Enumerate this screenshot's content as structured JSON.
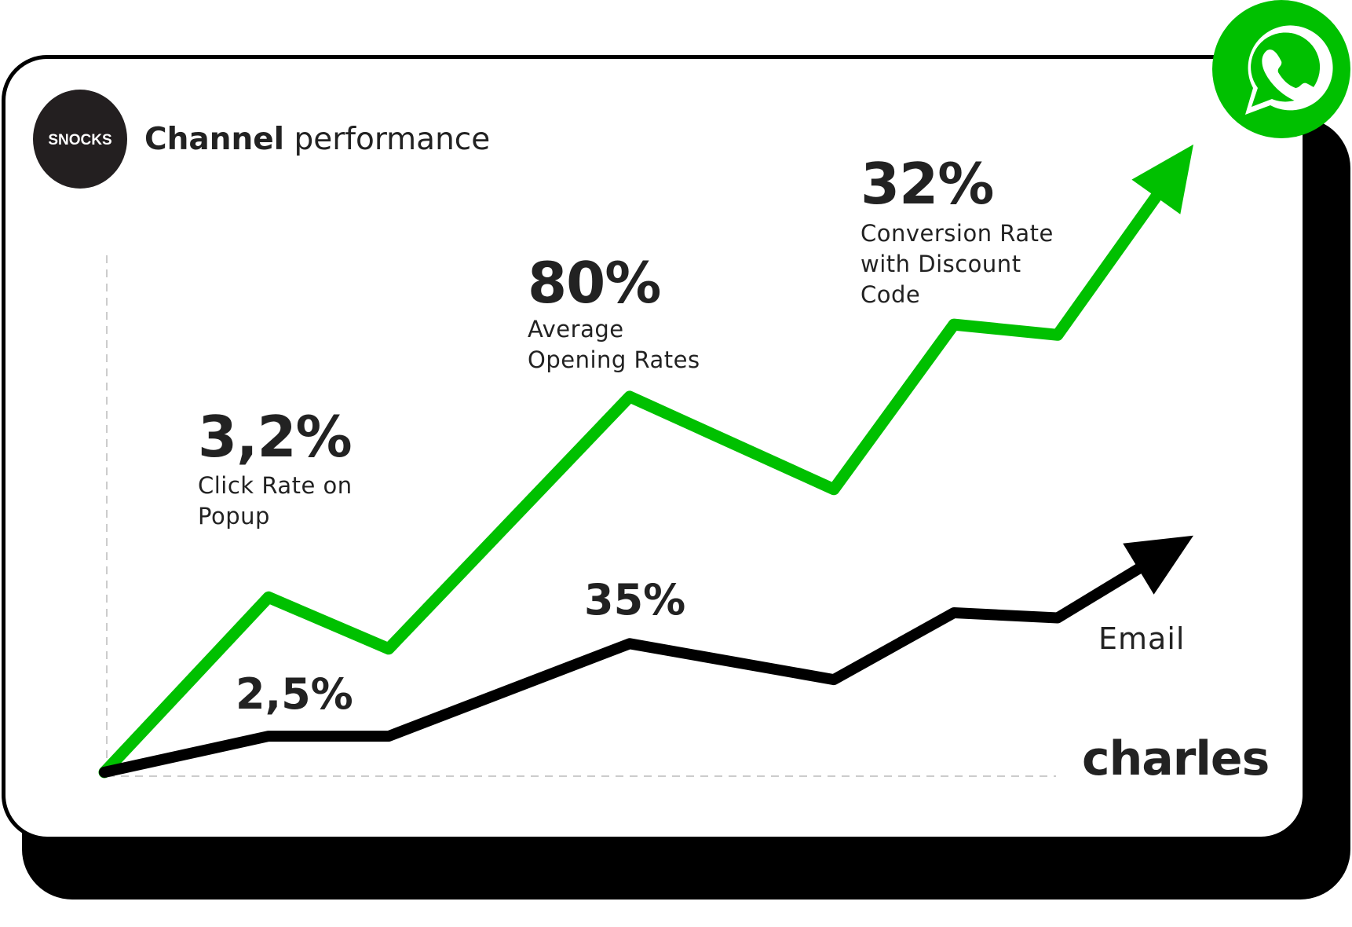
{
  "header": {
    "logo_text": "SNOCKS",
    "title_bold": "Channel",
    "title_rest": " performance"
  },
  "brand": "charles",
  "colors": {
    "whatsapp": "#00c000",
    "email": "#000000",
    "text": "#222222"
  },
  "icons": {
    "whatsapp": "whatsapp-icon"
  },
  "chart_data": {
    "type": "line",
    "x": [
      0,
      1,
      2,
      3,
      4,
      5,
      6,
      7
    ],
    "ylim": [
      0,
      100
    ],
    "series": [
      {
        "name": "",
        "color": "#00c000",
        "values": [
          0,
          34,
          24,
          73,
          55,
          87,
          85,
          122
        ]
      },
      {
        "name": "Email",
        "color": "#000000",
        "values": [
          0,
          7,
          7,
          25,
          18,
          31,
          30,
          46
        ]
      }
    ],
    "annotations": [
      {
        "value": "3,2%",
        "caption": [
          "Click Rate on",
          "Popup"
        ]
      },
      {
        "value": "80%",
        "caption": [
          "Average",
          "Opening Rates"
        ]
      },
      {
        "value": "32%",
        "caption": [
          "Conversion Rate",
          "with Discount",
          "Code"
        ]
      },
      {
        "value": "2,5%"
      },
      {
        "value": "35%"
      }
    ]
  }
}
